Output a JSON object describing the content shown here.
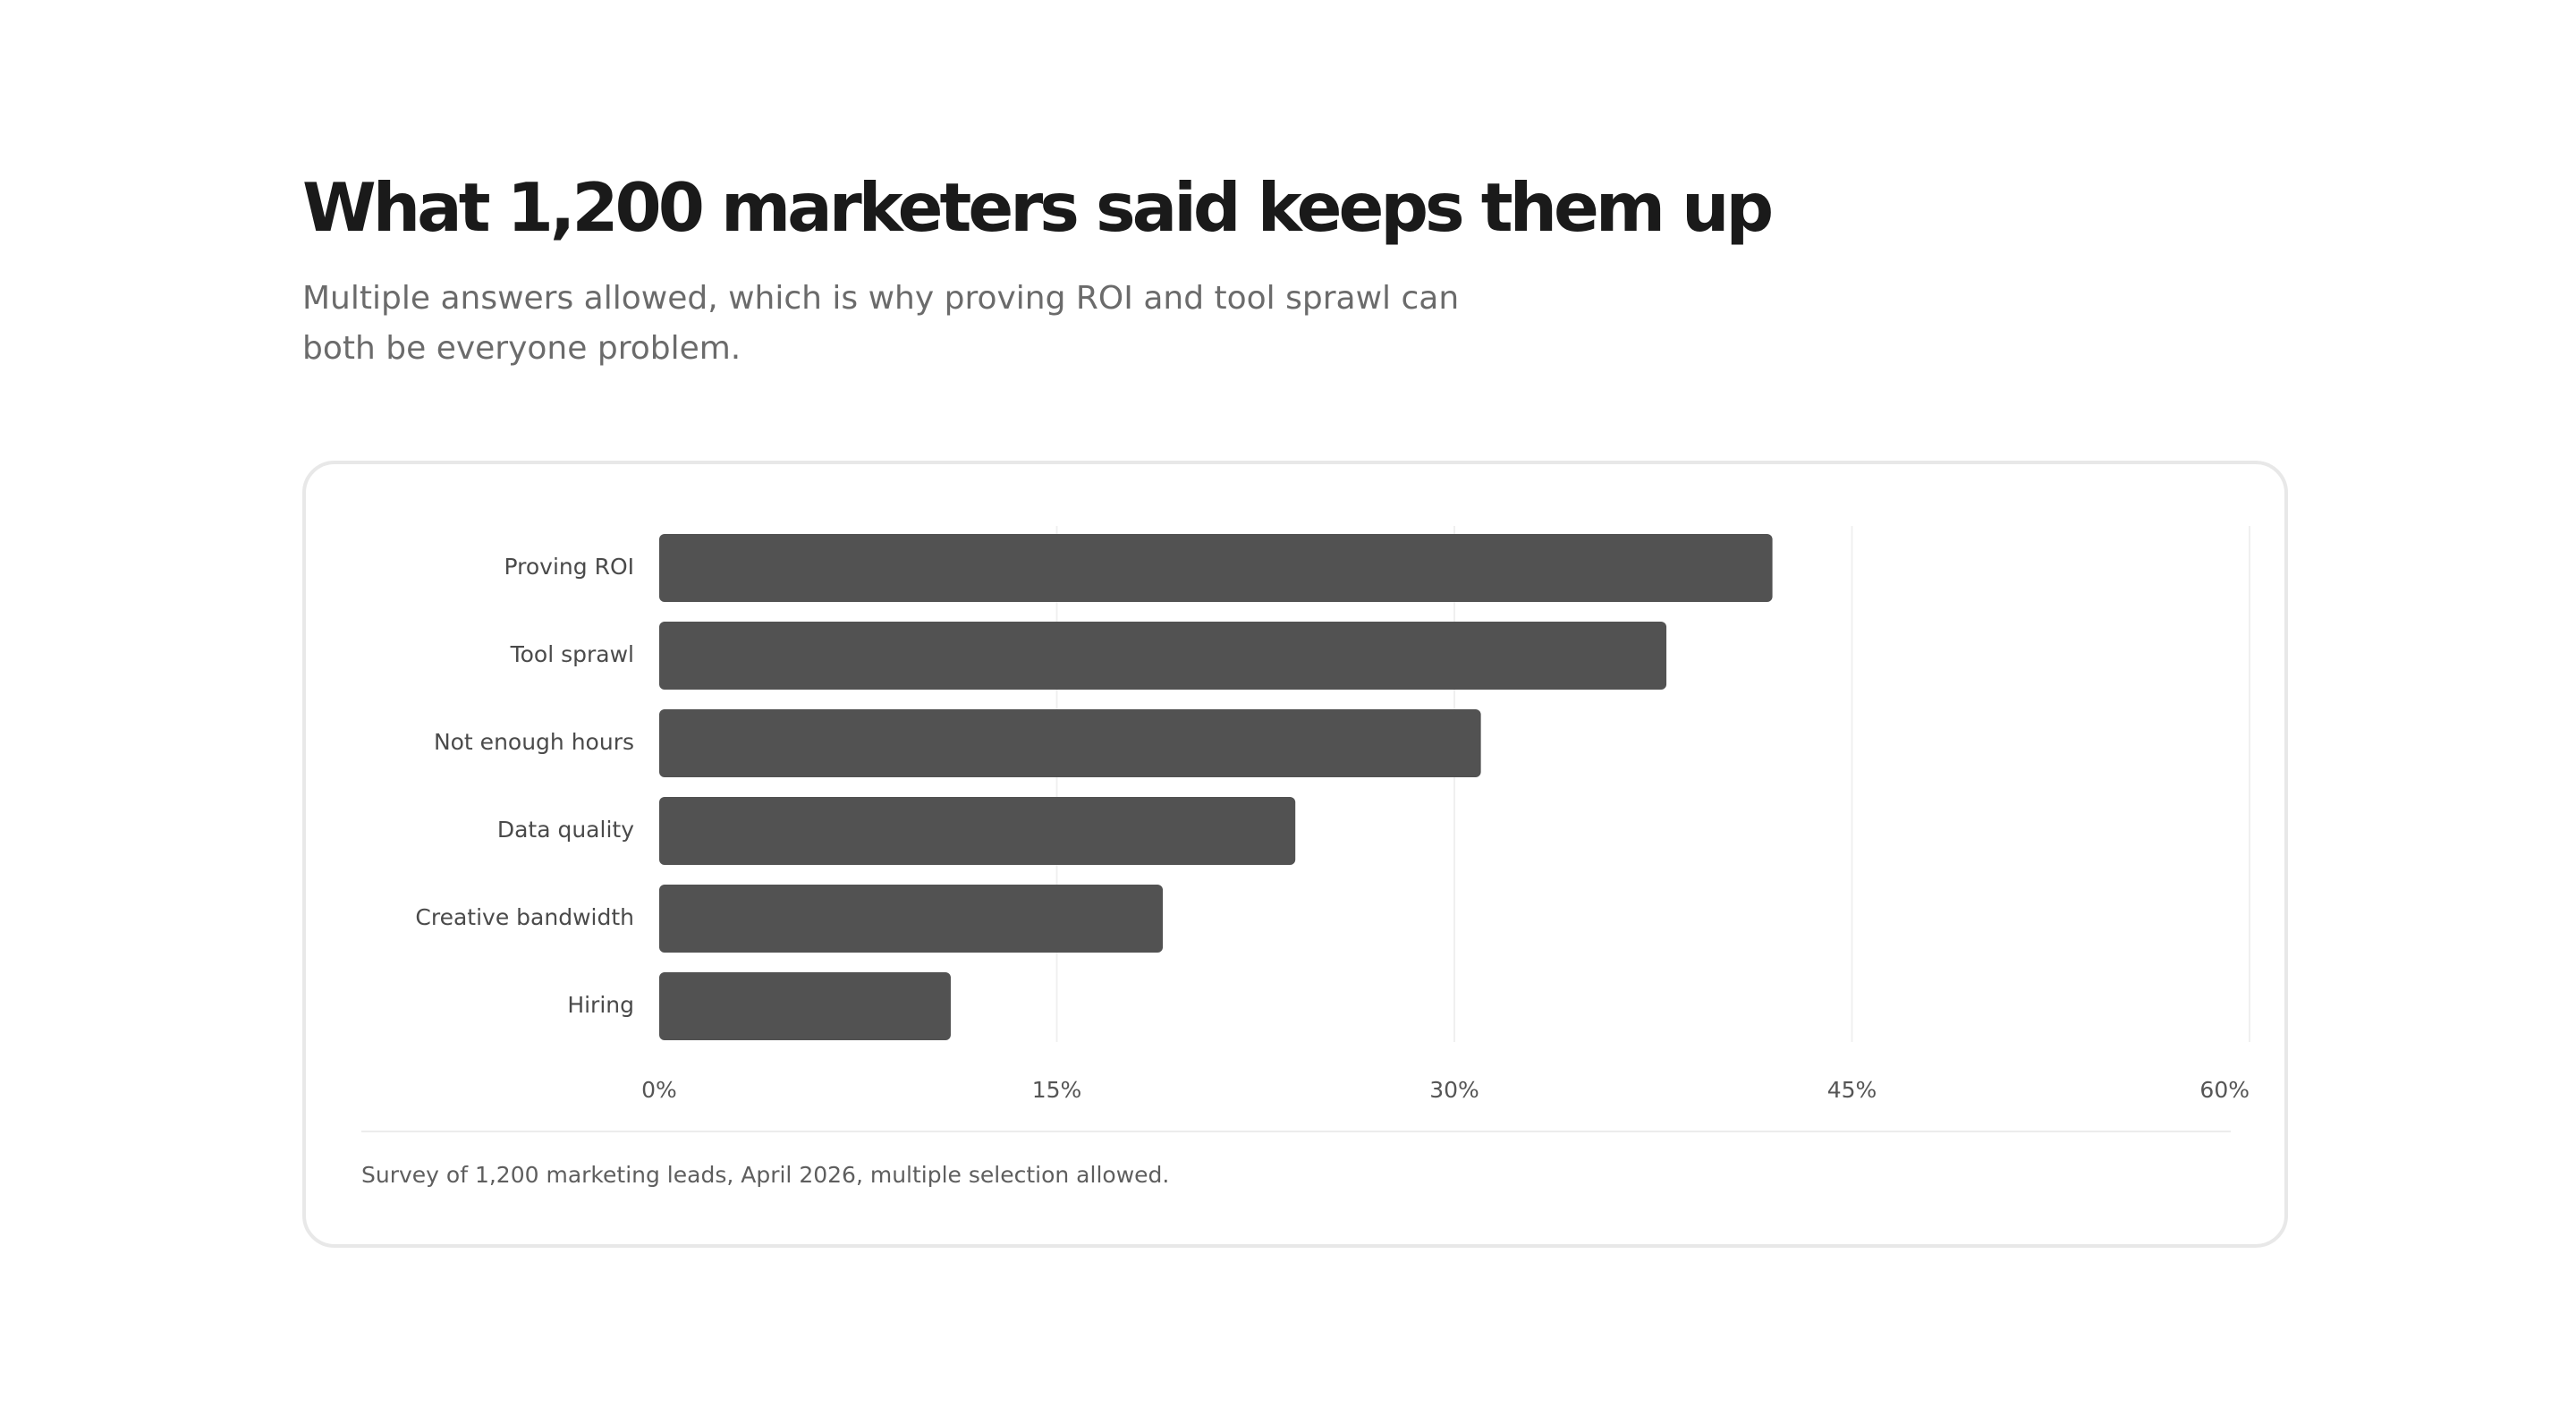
{
  "header": {
    "title": "What 1,200 marketers said keeps them up",
    "subtitle": "Multiple answers allowed, which is why proving ROI and tool sprawl can both be everyone problem."
  },
  "chart_data": {
    "type": "bar",
    "orientation": "horizontal",
    "categories": [
      "Proving ROI",
      "Tool sprawl",
      "Not enough hours",
      "Data quality",
      "Creative bandwidth",
      "Hiring"
    ],
    "values": [
      42,
      38,
      31,
      24,
      19,
      11
    ],
    "unit": "%",
    "xlim": [
      0,
      60
    ],
    "xticks": [
      0,
      15,
      30,
      45,
      60
    ],
    "xtick_labels": [
      "0%",
      "15%",
      "30%",
      "45%",
      "60%"
    ],
    "grid": "vertical",
    "bar_color": "#525252",
    "grid_color": "#f0f0f0"
  },
  "footer": {
    "source": "Survey of 1,200 marketing leads, April 2026, multiple selection allowed."
  }
}
